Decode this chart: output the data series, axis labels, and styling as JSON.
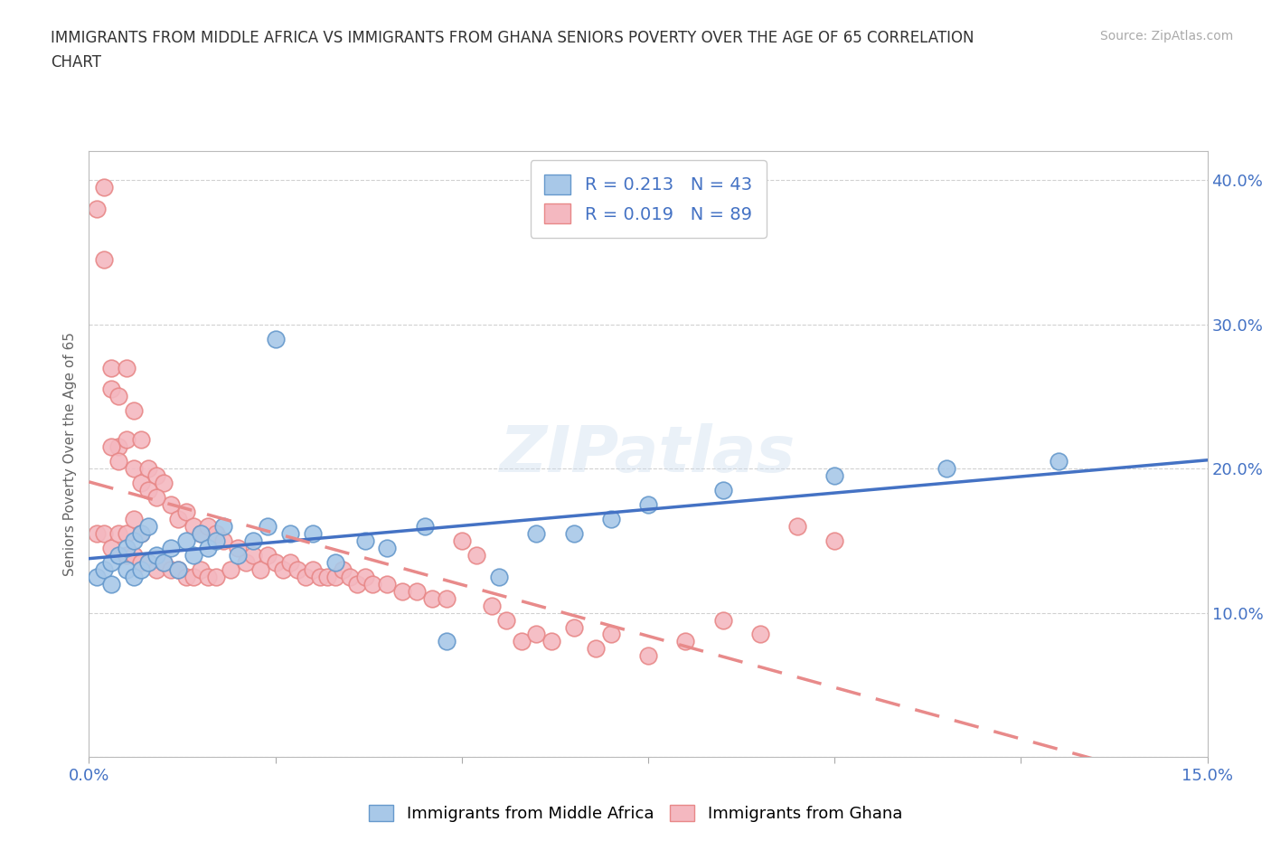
{
  "title_line1": "IMMIGRANTS FROM MIDDLE AFRICA VS IMMIGRANTS FROM GHANA SENIORS POVERTY OVER THE AGE OF 65 CORRELATION",
  "title_line2": "CHART",
  "source": "Source: ZipAtlas.com",
  "ylabel": "Seniors Poverty Over the Age of 65",
  "xlim": [
    0.0,
    0.15
  ],
  "ylim": [
    0.0,
    0.42
  ],
  "xticks": [
    0.0,
    0.025,
    0.05,
    0.075,
    0.1,
    0.125,
    0.15
  ],
  "xtick_labels": [
    "0.0%",
    "",
    "",
    "",
    "",
    "",
    "15.0%"
  ],
  "yticks": [
    0.0,
    0.1,
    0.2,
    0.3,
    0.4
  ],
  "ytick_labels": [
    "",
    "10.0%",
    "20.0%",
    "30.0%",
    "40.0%"
  ],
  "blue_line_color": "#4472c4",
  "pink_line_color": "#e88a8a",
  "blue_dot_face": "#a8c8e8",
  "blue_dot_edge": "#6699cc",
  "pink_dot_face": "#f4b8c0",
  "pink_dot_edge": "#e88888",
  "R_blue": 0.213,
  "N_blue": 43,
  "R_pink": 0.019,
  "N_pink": 89,
  "watermark": "ZIPatlas",
  "blue_scatter_x": [
    0.001,
    0.002,
    0.003,
    0.003,
    0.004,
    0.005,
    0.005,
    0.006,
    0.006,
    0.007,
    0.007,
    0.008,
    0.008,
    0.009,
    0.01,
    0.011,
    0.012,
    0.013,
    0.014,
    0.015,
    0.016,
    0.017,
    0.018,
    0.02,
    0.022,
    0.024,
    0.027,
    0.03,
    0.033,
    0.037,
    0.04,
    0.045,
    0.025,
    0.055,
    0.06,
    0.065,
    0.07,
    0.075,
    0.085,
    0.1,
    0.115,
    0.13,
    0.048
  ],
  "blue_scatter_y": [
    0.125,
    0.13,
    0.135,
    0.12,
    0.14,
    0.13,
    0.145,
    0.125,
    0.15,
    0.13,
    0.155,
    0.135,
    0.16,
    0.14,
    0.135,
    0.145,
    0.13,
    0.15,
    0.14,
    0.155,
    0.145,
    0.15,
    0.16,
    0.14,
    0.15,
    0.16,
    0.155,
    0.155,
    0.135,
    0.15,
    0.145,
    0.16,
    0.29,
    0.125,
    0.155,
    0.155,
    0.165,
    0.175,
    0.185,
    0.195,
    0.2,
    0.205,
    0.08
  ],
  "pink_scatter_x": [
    0.001,
    0.001,
    0.002,
    0.002,
    0.002,
    0.003,
    0.003,
    0.003,
    0.004,
    0.004,
    0.004,
    0.005,
    0.005,
    0.005,
    0.006,
    0.006,
    0.006,
    0.007,
    0.007,
    0.007,
    0.008,
    0.008,
    0.009,
    0.009,
    0.01,
    0.01,
    0.011,
    0.011,
    0.012,
    0.012,
    0.013,
    0.013,
    0.014,
    0.014,
    0.015,
    0.015,
    0.016,
    0.016,
    0.017,
    0.017,
    0.018,
    0.019,
    0.02,
    0.021,
    0.022,
    0.023,
    0.024,
    0.025,
    0.026,
    0.027,
    0.028,
    0.029,
    0.03,
    0.031,
    0.032,
    0.033,
    0.034,
    0.035,
    0.036,
    0.037,
    0.038,
    0.04,
    0.042,
    0.044,
    0.046,
    0.048,
    0.05,
    0.052,
    0.054,
    0.056,
    0.058,
    0.06,
    0.062,
    0.065,
    0.068,
    0.07,
    0.075,
    0.08,
    0.085,
    0.09,
    0.095,
    0.1,
    0.005,
    0.006,
    0.007,
    0.003,
    0.004,
    0.008,
    0.009
  ],
  "pink_scatter_y": [
    0.38,
    0.155,
    0.395,
    0.345,
    0.155,
    0.27,
    0.255,
    0.145,
    0.215,
    0.25,
    0.155,
    0.27,
    0.22,
    0.14,
    0.24,
    0.2,
    0.14,
    0.22,
    0.19,
    0.135,
    0.2,
    0.135,
    0.195,
    0.13,
    0.19,
    0.135,
    0.175,
    0.13,
    0.165,
    0.13,
    0.17,
    0.125,
    0.16,
    0.125,
    0.155,
    0.13,
    0.16,
    0.125,
    0.155,
    0.125,
    0.15,
    0.13,
    0.145,
    0.135,
    0.14,
    0.13,
    0.14,
    0.135,
    0.13,
    0.135,
    0.13,
    0.125,
    0.13,
    0.125,
    0.125,
    0.125,
    0.13,
    0.125,
    0.12,
    0.125,
    0.12,
    0.12,
    0.115,
    0.115,
    0.11,
    0.11,
    0.15,
    0.14,
    0.105,
    0.095,
    0.08,
    0.085,
    0.08,
    0.09,
    0.075,
    0.085,
    0.07,
    0.08,
    0.095,
    0.085,
    0.16,
    0.15,
    0.155,
    0.165,
    0.155,
    0.215,
    0.205,
    0.185,
    0.18
  ]
}
